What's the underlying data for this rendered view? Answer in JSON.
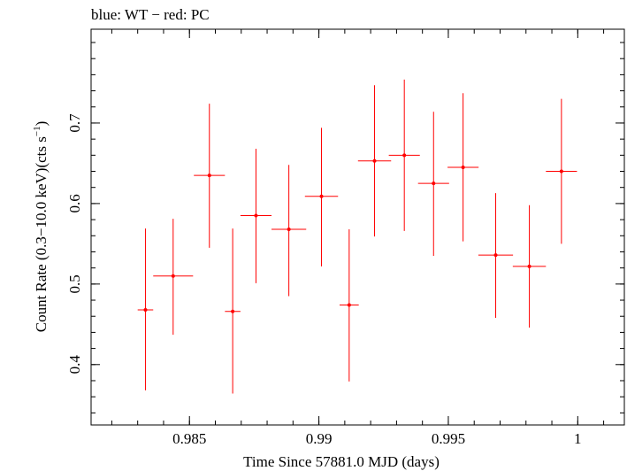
{
  "chart_data": {
    "type": "scatter",
    "title": "blue: WT − red: PC",
    "xlabel": "Time Since 57881.0 MJD (days)",
    "ylabel_main": "Count Rate (0.3−10.0 keV)(cts s",
    "ylabel_sup": "−1",
    "ylabel_close": ")",
    "xlim": [
      0.9812,
      1.0018
    ],
    "ylim": [
      0.325,
      0.8165
    ],
    "x_ticks": [
      {
        "value": 0.985,
        "label": "0.985"
      },
      {
        "value": 0.99,
        "label": "0.99"
      },
      {
        "value": 0.995,
        "label": "0.995"
      },
      {
        "value": 1.0,
        "label": "1"
      }
    ],
    "y_ticks": [
      {
        "value": 0.4,
        "label": "0.4"
      },
      {
        "value": 0.5,
        "label": "0.5"
      },
      {
        "value": 0.6,
        "label": "0.6"
      },
      {
        "value": 0.7,
        "label": "0.7"
      }
    ],
    "x_minor_step": 0.001,
    "y_minor_step": 0.02,
    "series": [
      {
        "name": "PC",
        "color": "#ff0000",
        "points": [
          {
            "x": 0.9833,
            "xerr": 0.0003,
            "y": 0.468,
            "ylo": 0.368,
            "yhi": 0.569
          },
          {
            "x": 0.98437,
            "xerr": 0.00077,
            "y": 0.51,
            "ylo": 0.437,
            "yhi": 0.581
          },
          {
            "x": 0.98577,
            "xerr": 0.0006,
            "y": 0.635,
            "ylo": 0.545,
            "yhi": 0.724
          },
          {
            "x": 0.98667,
            "xerr": 0.0003,
            "y": 0.466,
            "ylo": 0.364,
            "yhi": 0.569
          },
          {
            "x": 0.98757,
            "xerr": 0.0006,
            "y": 0.585,
            "ylo": 0.501,
            "yhi": 0.668
          },
          {
            "x": 0.98884,
            "xerr": 0.00067,
            "y": 0.568,
            "ylo": 0.485,
            "yhi": 0.648
          },
          {
            "x": 0.9901,
            "xerr": 0.00064,
            "y": 0.609,
            "ylo": 0.522,
            "yhi": 0.694
          },
          {
            "x": 0.99117,
            "xerr": 0.00037,
            "y": 0.474,
            "ylo": 0.379,
            "yhi": 0.568
          },
          {
            "x": 0.99215,
            "xerr": 0.00064,
            "y": 0.653,
            "ylo": 0.559,
            "yhi": 0.747
          },
          {
            "x": 0.9933,
            "xerr": 0.0006,
            "y": 0.66,
            "ylo": 0.566,
            "yhi": 0.754
          },
          {
            "x": 0.99443,
            "xerr": 0.0006,
            "y": 0.625,
            "ylo": 0.535,
            "yhi": 0.714
          },
          {
            "x": 0.99557,
            "xerr": 0.0006,
            "y": 0.645,
            "ylo": 0.553,
            "yhi": 0.737
          },
          {
            "x": 0.99683,
            "xerr": 0.00067,
            "y": 0.536,
            "ylo": 0.458,
            "yhi": 0.613
          },
          {
            "x": 0.99813,
            "xerr": 0.00064,
            "y": 0.522,
            "ylo": 0.446,
            "yhi": 0.598
          },
          {
            "x": 0.99937,
            "xerr": 0.0006,
            "y": 0.64,
            "ylo": 0.55,
            "yhi": 0.73
          }
        ]
      }
    ]
  }
}
